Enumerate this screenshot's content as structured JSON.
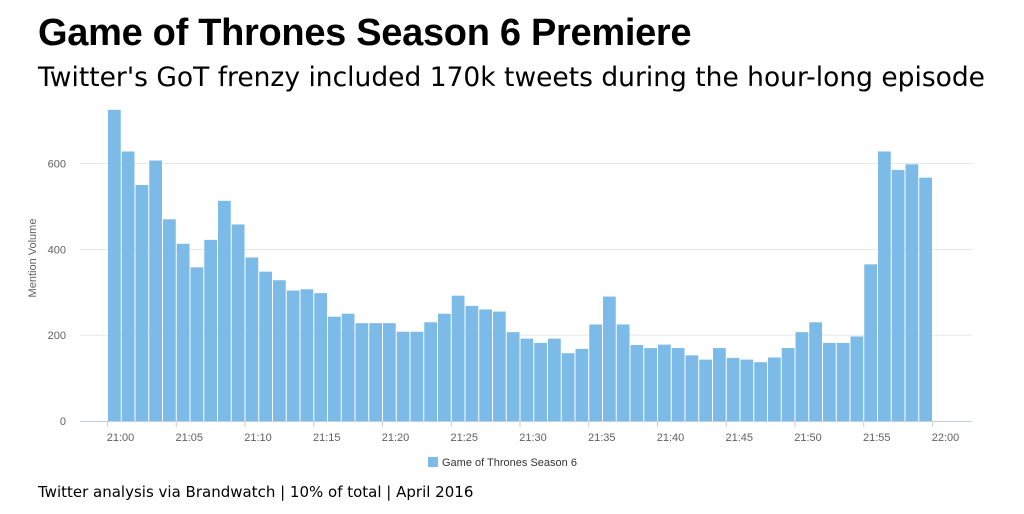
{
  "header": {
    "title": "Game of Thrones Season 6 Premiere",
    "subtitle": "Twitter's GoT frenzy included 170k tweets during the hour-long episode"
  },
  "footer": {
    "text": "Twitter analysis via Brandwatch | 10% of total | April 2016"
  },
  "colors": {
    "bar": "#7cbbe8",
    "grid": "#e6e6e6",
    "axis": "#c0d0e0"
  },
  "chart_data": {
    "type": "bar",
    "ylabel": "Mention Volume",
    "ylim": [
      0,
      720
    ],
    "yticks": [
      0,
      200,
      400,
      600
    ],
    "grid": true,
    "legend_position": "bottom-center",
    "xtick_labels": [
      "21:00",
      "21:05",
      "21:10",
      "21:15",
      "21:20",
      "21:25",
      "21:30",
      "21:35",
      "21:40",
      "21:45",
      "21:50",
      "21:55",
      "22:00"
    ],
    "x_start": "21:00",
    "x_interval_minutes": 1,
    "series": [
      {
        "name": "Game of Thrones Season 6",
        "values": [
          725,
          628,
          550,
          607,
          470,
          413,
          358,
          422,
          513,
          458,
          381,
          348,
          328,
          304,
          307,
          298,
          243,
          250,
          228,
          228,
          228,
          208,
          208,
          230,
          250,
          292,
          268,
          260,
          255,
          207,
          192,
          182,
          192,
          158,
          168,
          225,
          290,
          225,
          177,
          170,
          178,
          170,
          153,
          143,
          170,
          147,
          143,
          137,
          148,
          170,
          207,
          230,
          182,
          182,
          197,
          365,
          628,
          585,
          598,
          567
        ]
      }
    ]
  }
}
